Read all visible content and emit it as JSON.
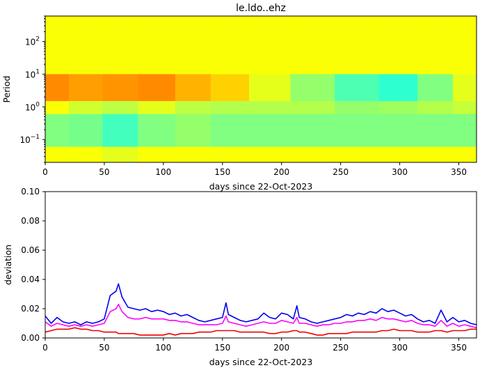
{
  "figure": {
    "title": "le.ldo..ehz"
  },
  "chart_data": [
    {
      "type": "heatmap",
      "title": "le.ldo..ehz",
      "xlabel": "days since 22-Oct-2023",
      "ylabel": "Period",
      "xlim": [
        0,
        365
      ],
      "ylim": [
        0.02,
        600
      ],
      "yscale": "log",
      "xticks": [
        0,
        50,
        100,
        150,
        200,
        250,
        300,
        350
      ],
      "yticks": [
        {
          "value": 0.1,
          "base": "10",
          "exp": "−1"
        },
        {
          "value": 1,
          "base": "10",
          "exp": "0"
        },
        {
          "value": 10,
          "base": "10",
          "exp": "1"
        },
        {
          "value": 100,
          "base": "10",
          "exp": "2"
        }
      ],
      "colormap": "jet",
      "bands": [
        {
          "from": 10,
          "to": 600,
          "values": [
            0.62,
            0.62,
            0.62,
            0.62,
            0.62,
            0.62,
            0.62,
            0.62,
            0.62,
            0.62,
            0.62,
            0.62
          ]
        },
        {
          "from": 1.5,
          "to": 10,
          "values": [
            0.74,
            0.72,
            0.73,
            0.74,
            0.7,
            0.67,
            0.6,
            0.52,
            0.45,
            0.42,
            0.5,
            0.6
          ]
        },
        {
          "from": 0.6,
          "to": 1.5,
          "values": [
            0.62,
            0.58,
            0.56,
            0.6,
            0.56,
            0.55,
            0.55,
            0.55,
            0.52,
            0.53,
            0.55,
            0.57
          ]
        },
        {
          "from": 0.06,
          "to": 0.6,
          "values": [
            0.5,
            0.49,
            0.44,
            0.5,
            0.52,
            0.5,
            0.5,
            0.5,
            0.5,
            0.5,
            0.5,
            0.5
          ]
        },
        {
          "from": 0.02,
          "to": 0.06,
          "values": [
            0.62,
            0.62,
            0.6,
            0.62,
            0.62,
            0.62,
            0.62,
            0.62,
            0.62,
            0.62,
            0.62,
            0.62
          ]
        }
      ],
      "band_x_centers": [
        5,
        35,
        62,
        95,
        125,
        155,
        190,
        225,
        265,
        300,
        330,
        360
      ]
    },
    {
      "type": "line",
      "xlabel": "days since 22-Oct-2023",
      "ylabel": "deviation",
      "xlim": [
        0,
        365
      ],
      "ylim": [
        0,
        0.1
      ],
      "xticks": [
        0,
        50,
        100,
        150,
        200,
        250,
        300,
        350
      ],
      "yticks": [
        0.0,
        0.02,
        0.04,
        0.06,
        0.08,
        0.1
      ],
      "ytick_labels": [
        "0.00",
        "0.02",
        "0.04",
        "0.06",
        "0.08",
        "0.10"
      ],
      "x": [
        0,
        5,
        10,
        15,
        20,
        25,
        30,
        35,
        40,
        45,
        50,
        55,
        60,
        62,
        65,
        70,
        75,
        80,
        85,
        90,
        95,
        100,
        105,
        110,
        115,
        120,
        125,
        130,
        135,
        140,
        145,
        150,
        153,
        155,
        160,
        165,
        170,
        175,
        180,
        185,
        190,
        195,
        200,
        205,
        210,
        213,
        215,
        220,
        225,
        230,
        235,
        240,
        245,
        250,
        255,
        260,
        265,
        270,
        275,
        280,
        285,
        290,
        295,
        300,
        305,
        310,
        315,
        320,
        325,
        330,
        335,
        340,
        345,
        350,
        355,
        360,
        365
      ],
      "series": [
        {
          "color": "#0000ee",
          "values": [
            0.015,
            0.01,
            0.014,
            0.011,
            0.01,
            0.011,
            0.009,
            0.011,
            0.01,
            0.011,
            0.013,
            0.029,
            0.032,
            0.037,
            0.028,
            0.021,
            0.02,
            0.019,
            0.02,
            0.018,
            0.019,
            0.018,
            0.016,
            0.017,
            0.015,
            0.016,
            0.014,
            0.012,
            0.011,
            0.012,
            0.013,
            0.014,
            0.024,
            0.016,
            0.014,
            0.012,
            0.011,
            0.012,
            0.013,
            0.017,
            0.014,
            0.013,
            0.017,
            0.016,
            0.013,
            0.022,
            0.014,
            0.013,
            0.011,
            0.01,
            0.011,
            0.012,
            0.013,
            0.014,
            0.016,
            0.015,
            0.017,
            0.016,
            0.018,
            0.017,
            0.02,
            0.018,
            0.019,
            0.017,
            0.015,
            0.016,
            0.013,
            0.011,
            0.012,
            0.01,
            0.019,
            0.011,
            0.014,
            0.011,
            0.012,
            0.01,
            0.009
          ]
        },
        {
          "color": "#ff00ff",
          "values": [
            0.011,
            0.008,
            0.01,
            0.009,
            0.008,
            0.009,
            0.008,
            0.009,
            0.008,
            0.009,
            0.01,
            0.018,
            0.02,
            0.023,
            0.018,
            0.014,
            0.013,
            0.013,
            0.014,
            0.013,
            0.013,
            0.013,
            0.012,
            0.012,
            0.011,
            0.011,
            0.01,
            0.009,
            0.009,
            0.009,
            0.009,
            0.01,
            0.015,
            0.011,
            0.01,
            0.009,
            0.008,
            0.009,
            0.01,
            0.011,
            0.01,
            0.01,
            0.012,
            0.011,
            0.01,
            0.014,
            0.01,
            0.01,
            0.009,
            0.008,
            0.009,
            0.009,
            0.01,
            0.01,
            0.011,
            0.011,
            0.012,
            0.012,
            0.013,
            0.012,
            0.014,
            0.013,
            0.013,
            0.012,
            0.011,
            0.012,
            0.01,
            0.009,
            0.009,
            0.008,
            0.012,
            0.008,
            0.01,
            0.008,
            0.009,
            0.008,
            0.007
          ]
        },
        {
          "color": "#ee0000",
          "values": [
            0.004,
            0.005,
            0.006,
            0.006,
            0.006,
            0.007,
            0.006,
            0.006,
            0.005,
            0.005,
            0.004,
            0.004,
            0.004,
            0.003,
            0.003,
            0.003,
            0.003,
            0.002,
            0.002,
            0.002,
            0.002,
            0.002,
            0.003,
            0.002,
            0.003,
            0.003,
            0.003,
            0.004,
            0.004,
            0.004,
            0.005,
            0.005,
            0.005,
            0.005,
            0.005,
            0.004,
            0.004,
            0.004,
            0.004,
            0.004,
            0.003,
            0.003,
            0.004,
            0.004,
            0.005,
            0.005,
            0.004,
            0.004,
            0.003,
            0.002,
            0.002,
            0.003,
            0.003,
            0.003,
            0.003,
            0.004,
            0.004,
            0.004,
            0.004,
            0.004,
            0.005,
            0.005,
            0.006,
            0.005,
            0.005,
            0.005,
            0.004,
            0.004,
            0.004,
            0.005,
            0.005,
            0.004,
            0.005,
            0.005,
            0.005,
            0.006,
            0.006
          ]
        }
      ]
    }
  ]
}
